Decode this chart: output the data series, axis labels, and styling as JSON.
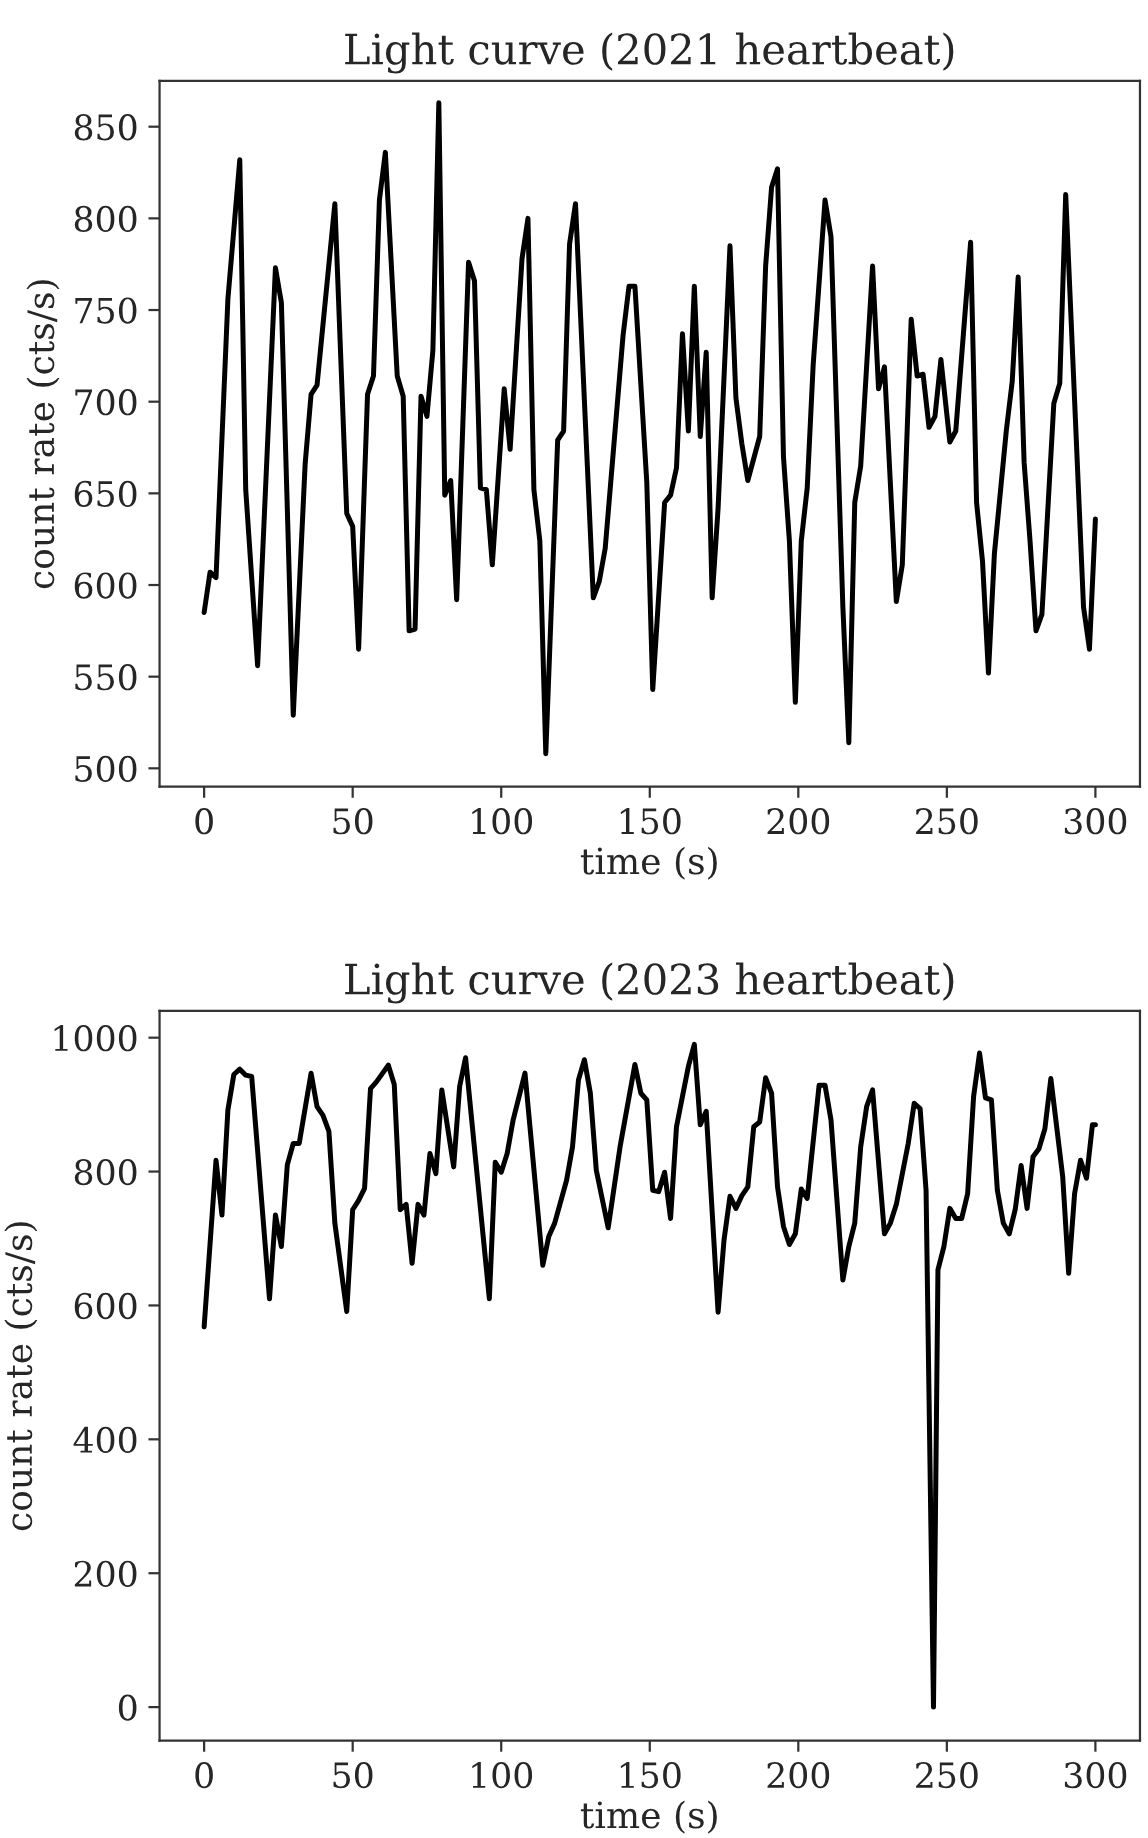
{
  "chart_data": [
    {
      "type": "line",
      "title": "Light curve (2021 heartbeat)",
      "xlabel": "time (s)",
      "ylabel": "count rate (cts/s)",
      "xlim": [
        -15,
        315
      ],
      "ylim": [
        490,
        875
      ],
      "xticks": [
        0,
        50,
        100,
        150,
        200,
        250,
        300
      ],
      "yticks": [
        500,
        550,
        600,
        650,
        700,
        750,
        800,
        850
      ],
      "grid": false,
      "line_style": "solid",
      "series": [
        {
          "color": "#000000",
          "x": [
            0,
            2,
            4,
            8,
            12,
            14,
            18,
            24,
            26,
            30,
            34,
            36,
            38,
            44,
            48,
            50,
            52,
            55,
            57,
            59,
            61,
            65,
            67,
            69,
            71,
            73,
            75,
            77,
            79,
            81,
            83,
            85,
            89,
            91,
            93,
            95,
            97,
            101,
            103,
            107,
            109,
            111,
            113,
            115,
            119,
            121,
            123,
            125,
            131,
            133,
            135,
            141,
            143,
            145,
            149,
            151,
            155,
            157,
            159,
            161,
            163,
            165,
            167,
            169,
            171,
            173,
            177,
            179,
            181,
            183,
            187,
            189,
            191,
            193,
            195,
            197,
            199,
            201,
            203,
            205,
            209,
            211,
            215,
            217,
            219,
            221,
            225,
            227,
            229,
            233,
            235,
            238,
            240,
            242,
            244,
            246,
            248,
            251,
            253,
            258,
            260,
            262,
            264,
            266,
            270,
            272,
            274,
            276,
            278,
            280,
            282,
            286,
            288,
            290,
            296,
            298,
            300
          ],
          "values": [
            585,
            607,
            604,
            756,
            832,
            652,
            556,
            773,
            754,
            529,
            666,
            704,
            709,
            808,
            639,
            632,
            565,
            704,
            714,
            810,
            836,
            714,
            703,
            575,
            576,
            703,
            692,
            728,
            863,
            649,
            657,
            592,
            776,
            766,
            653,
            652,
            611,
            707,
            674,
            778,
            800,
            652,
            624,
            508,
            679,
            684,
            786,
            808,
            593,
            602,
            620,
            736,
            763,
            763,
            656,
            543,
            645,
            649,
            664,
            737,
            684,
            763,
            681,
            727,
            593,
            642,
            785,
            702,
            677,
            657,
            681,
            774,
            817,
            827,
            670,
            624,
            536,
            624,
            653,
            720,
            810,
            790,
            588,
            514,
            645,
            665,
            774,
            707,
            719,
            591,
            611,
            745,
            714,
            715,
            686,
            692,
            723,
            678,
            684,
            787,
            645,
            613,
            552,
            617,
            684,
            711,
            768,
            667,
            624,
            575,
            584,
            699,
            710,
            813,
            588,
            565,
            636
          ]
        }
      ]
    },
    {
      "type": "line",
      "title": "Light curve (2023 heartbeat)",
      "xlabel": "time (s)",
      "ylabel": "count rate (cts/s)",
      "xlim": [
        -15,
        315
      ],
      "ylim": [
        -50,
        1040
      ],
      "xticks": [
        0,
        50,
        100,
        150,
        200,
        250,
        300
      ],
      "yticks": [
        0,
        200,
        400,
        600,
        800,
        1000
      ],
      "grid": false,
      "line_style": "solid",
      "series": [
        {
          "color": "#000000",
          "x": [
            0,
            4,
            6,
            8,
            10,
            12,
            14,
            16,
            22,
            24,
            26,
            28,
            30,
            32,
            36,
            38,
            40,
            42,
            44,
            48,
            50,
            52,
            54,
            56,
            58,
            62,
            64,
            66,
            68,
            70,
            72,
            74,
            76,
            78,
            80,
            84,
            86,
            88,
            96,
            98,
            100,
            102,
            104,
            108,
            114,
            116,
            118,
            122,
            124,
            126,
            128,
            130,
            132,
            136,
            140,
            145,
            147,
            149,
            151,
            153,
            155,
            157,
            159,
            161,
            163,
            165,
            167,
            169,
            173,
            175,
            177,
            179,
            181,
            183,
            185,
            187,
            189,
            191,
            193,
            195,
            197,
            199,
            201,
            203,
            207,
            209,
            211,
            215,
            217,
            219,
            221,
            223,
            225,
            229,
            231,
            233,
            237,
            239,
            241,
            243,
            245.5,
            247,
            249,
            251,
            253,
            255,
            257,
            259,
            261,
            263,
            265,
            267,
            269,
            271,
            273,
            275,
            277,
            279,
            281,
            283,
            285,
            289,
            291,
            293,
            295,
            297,
            299,
            300
          ],
          "values": [
            568,
            817,
            735,
            892,
            945,
            953,
            944,
            942,
            610,
            735,
            688,
            810,
            842,
            842,
            947,
            897,
            884,
            860,
            723,
            591,
            743,
            757,
            775,
            924,
            934,
            959,
            930,
            743,
            751,
            663,
            751,
            735,
            827,
            797,
            922,
            807,
            927,
            970,
            610,
            814,
            799,
            827,
            877,
            947,
            660,
            703,
            723,
            787,
            837,
            937,
            967,
            917,
            802,
            716,
            837,
            960,
            917,
            907,
            772,
            770,
            799,
            730,
            867,
            912,
            957,
            990,
            870,
            890,
            590,
            698,
            763,
            745,
            764,
            777,
            867,
            874,
            940,
            917,
            777,
            718,
            691,
            707,
            774,
            760,
            929,
            929,
            877,
            638,
            688,
            723,
            837,
            897,
            922,
            707,
            723,
            751,
            842,
            902,
            894,
            772,
            0,
            653,
            688,
            745,
            730,
            730,
            767,
            912,
            977,
            910,
            907,
            772,
            723,
            707,
            743,
            809,
            745,
            822,
            834,
            864,
            939,
            792,
            648,
            767,
            817,
            790,
            870,
            870
          ]
        }
      ]
    }
  ]
}
